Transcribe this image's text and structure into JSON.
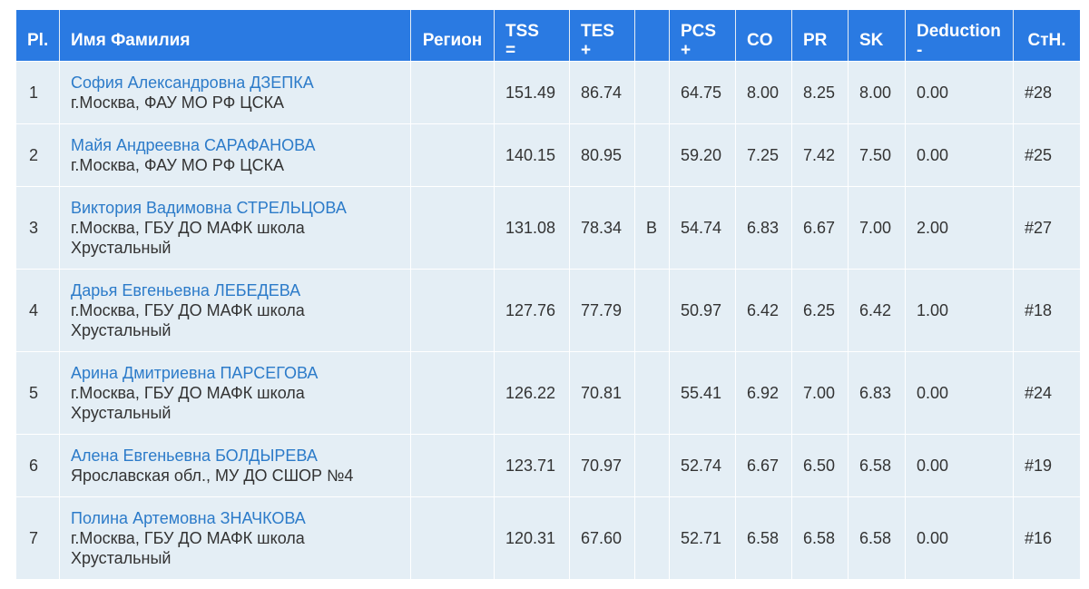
{
  "headers": {
    "place": "Pl.",
    "name": "Имя Фамилия",
    "region": "Регион",
    "tss_l1": "TSS",
    "tss_l2": "=",
    "tes_l1": "TES",
    "tes_l2": "+",
    "bonus": "",
    "pcs_l1": "PCS",
    "pcs_l2": "+",
    "co": "CO",
    "pr": "PR",
    "sk": "SK",
    "ded_l1": "Deduction",
    "ded_l2": "-",
    "start": "СтН."
  },
  "rows": [
    {
      "place": "1",
      "name": "София Александровна ДЗЕПКА",
      "club": "г.Москва, ФАУ МО РФ ЦСКА",
      "region": "",
      "tss": "151.49",
      "tes": "86.74",
      "bonus": "",
      "pcs": "64.75",
      "co": "8.00",
      "pr": "8.25",
      "sk": "8.00",
      "ded": "0.00",
      "start": "#28"
    },
    {
      "place": "2",
      "name": "Майя Андреевна САРАФАНОВА",
      "club": "г.Москва, ФАУ МО РФ ЦСКА",
      "region": "",
      "tss": "140.15",
      "tes": "80.95",
      "bonus": "",
      "pcs": "59.20",
      "co": "7.25",
      "pr": "7.42",
      "sk": "7.50",
      "ded": "0.00",
      "start": "#25"
    },
    {
      "place": "3",
      "name": "Виктория Вадимовна СТРЕЛЬЦОВА",
      "club": "г.Москва, ГБУ ДО МАФК школа Хрустальный",
      "region": "",
      "tss": "131.08",
      "tes": "78.34",
      "bonus": "B",
      "pcs": "54.74",
      "co": "6.83",
      "pr": "6.67",
      "sk": "7.00",
      "ded": "2.00",
      "start": "#27"
    },
    {
      "place": "4",
      "name": "Дарья Евгеньевна ЛЕБЕДЕВА",
      "club": "г.Москва, ГБУ ДО МАФК школа Хрустальный",
      "region": "",
      "tss": "127.76",
      "tes": "77.79",
      "bonus": "",
      "pcs": "50.97",
      "co": "6.42",
      "pr": "6.25",
      "sk": "6.42",
      "ded": "1.00",
      "start": "#18"
    },
    {
      "place": "5",
      "name": "Арина Дмитриевна ПАРСЕГОВА",
      "club": "г.Москва, ГБУ ДО МАФК школа Хрустальный",
      "region": "",
      "tss": "126.22",
      "tes": "70.81",
      "bonus": "",
      "pcs": "55.41",
      "co": "6.92",
      "pr": "7.00",
      "sk": "6.83",
      "ded": "0.00",
      "start": "#24"
    },
    {
      "place": "6",
      "name": "Алена Евгеньевна БОЛДЫРЕВА",
      "club": "Ярославская обл., МУ ДО СШОР №4",
      "region": "",
      "tss": "123.71",
      "tes": "70.97",
      "bonus": "",
      "pcs": "52.74",
      "co": "6.67",
      "pr": "6.50",
      "sk": "6.58",
      "ded": "0.00",
      "start": "#19"
    },
    {
      "place": "7",
      "name": "Полина Артемовна ЗНАЧКОВА",
      "club": "г.Москва, ГБУ ДО МАФК школа Хрустальный",
      "region": "",
      "tss": "120.31",
      "tes": "67.60",
      "bonus": "",
      "pcs": "52.71",
      "co": "6.58",
      "pr": "6.58",
      "sk": "6.58",
      "ded": "0.00",
      "start": "#16"
    }
  ]
}
